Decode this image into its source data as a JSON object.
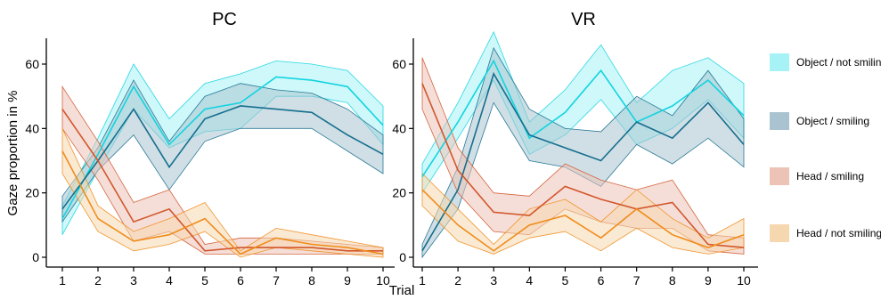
{
  "chart_data": {
    "type": "line",
    "xlabel": "Trial",
    "ylabel": "Gaze proportion in %",
    "x": [
      1,
      2,
      3,
      4,
      5,
      6,
      7,
      8,
      9,
      10
    ],
    "ylim": [
      0,
      68
    ],
    "yticks": [
      0,
      20,
      40,
      60
    ],
    "grid": false,
    "legend_position": "right",
    "legend": [
      {
        "name": "Object / not smiling",
        "color": "#12d4e0",
        "fill": "#a6f2f6"
      },
      {
        "name": "Object / smiling",
        "color": "#146e8e",
        "fill": "#a9c4d0"
      },
      {
        "name": "Head / smiling",
        "color": "#d2562b",
        "fill": "#edc3b8"
      },
      {
        "name": "Head / not smiling",
        "color": "#f08c1c",
        "fill": "#f6d8b0"
      }
    ],
    "panels": [
      {
        "title": "PC",
        "series": [
          {
            "name": "Object / not smiling",
            "values": [
              12,
              32,
              53,
              35,
              46,
              48,
              56,
              55,
              53,
              41
            ],
            "lower": [
              7,
              27,
              46,
              34,
              39,
              40,
              50,
              50,
              48,
              35
            ],
            "upper": [
              16,
              37,
              60,
              43,
              54,
              57,
              61,
              60,
              58,
              47
            ]
          },
          {
            "name": "Object / smiling",
            "values": [
              15,
              30,
              46,
              28,
              43,
              47,
              46,
              45,
              38,
              32
            ],
            "lower": [
              11,
              27,
              38,
              21,
              36,
              40,
              40,
              40,
              33,
              26
            ],
            "upper": [
              19,
              34,
              55,
              36,
              50,
              54,
              52,
              51,
              46,
              38
            ]
          },
          {
            "name": "Head / smiling",
            "values": [
              46,
              30,
              11,
              15,
              2,
              3,
              3,
              3,
              2,
              2
            ],
            "lower": [
              40,
              24,
              5,
              8,
              1,
              1,
              1,
              1,
              1,
              1
            ],
            "upper": [
              53,
              36,
              17,
              21,
              4,
              6,
              6,
              5,
              4,
              3
            ]
          },
          {
            "name": "Head / not smiling",
            "values": [
              33,
              12,
              5,
              7,
              12,
              1,
              6,
              4,
              3,
              1
            ],
            "lower": [
              26,
              8,
              2,
              4,
              8,
              0,
              3,
              2,
              1,
              0
            ],
            "upper": [
              40,
              16,
              8,
              12,
              17,
              2,
              9,
              7,
              5,
              3
            ]
          }
        ]
      },
      {
        "title": "VR",
        "series": [
          {
            "name": "Object / not smiling",
            "values": [
              25,
              42,
              61,
              37,
              45,
              58,
              42,
              47,
              55,
              44
            ],
            "lower": [
              20,
              37,
              55,
              32,
              38,
              49,
              35,
              40,
              49,
              37
            ],
            "upper": [
              29,
              48,
              70,
              42,
              52,
              66,
              48,
              58,
              62,
              54
            ]
          },
          {
            "name": "Object / smiling",
            "values": [
              2,
              21,
              57,
              38,
              34,
              30,
              42,
              37,
              48,
              35
            ],
            "lower": [
              0,
              15,
              48,
              30,
              28,
              22,
              35,
              29,
              37,
              28
            ],
            "upper": [
              4,
              28,
              65,
              46,
              40,
              39,
              50,
              44,
              58,
              43
            ]
          },
          {
            "name": "Head / smiling",
            "values": [
              54,
              27,
              14,
              13,
              22,
              18,
              15,
              17,
              4,
              3
            ],
            "lower": [
              46,
              20,
              8,
              7,
              15,
              11,
              9,
              9,
              2,
              1
            ],
            "upper": [
              62,
              34,
              20,
              19,
              29,
              24,
              21,
              24,
              7,
              6
            ]
          },
          {
            "name": "Head / not smiling",
            "values": [
              21,
              10,
              2,
              10,
              13,
              6,
              15,
              7,
              3,
              7
            ],
            "lower": [
              16,
              5,
              1,
              6,
              8,
              2,
              9,
              3,
              1,
              3
            ],
            "upper": [
              26,
              15,
              4,
              15,
              18,
              11,
              21,
              12,
              6,
              12
            ]
          }
        ]
      }
    ]
  }
}
